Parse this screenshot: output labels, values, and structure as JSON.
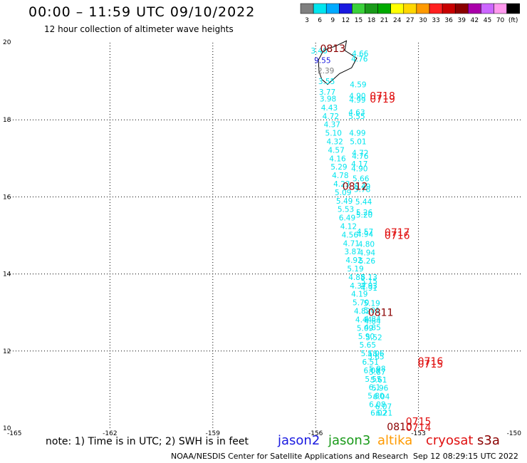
{
  "header": {
    "title": "00:00 – 11:59 UTC 09/10/2022",
    "subtitle": "12 hour collection of altimeter wave heights"
  },
  "footer": {
    "note": "note: 1) Time is in UTC; 2) SWH is in feet",
    "credit": "NOAA/NESDIS Center for Satellite Applications and Research",
    "timestamp": "Sep 12 08:29:15 UTC 2022",
    "satellites": [
      {
        "name": "jason2",
        "color": "#1a1ae0"
      },
      {
        "name": "jason3",
        "color": "#1a9a1a"
      },
      {
        "name": "altika",
        "color": "#ff9a00"
      },
      {
        "name": "cryosat",
        "color": "#e01010"
      },
      {
        "name": "s3a",
        "color": "#8a0000"
      }
    ]
  },
  "chart_data": {
    "type": "scatter",
    "title": "00:00 – 11:59 UTC 09/10/2022",
    "subtitle": "12 hour collection of altimeter wave heights",
    "xlim": [
      -165,
      -150
    ],
    "ylim": [
      10,
      20
    ],
    "xticks": [
      "-165",
      "-162",
      "-159",
      "-156",
      "-153",
      "-150"
    ],
    "yticks": [
      "10",
      "12",
      "14",
      "16",
      "18",
      "20"
    ],
    "grid": true,
    "colorbar": {
      "labels": [
        "3",
        "6",
        "9",
        "12",
        "15",
        "18",
        "21",
        "24",
        "27",
        "30",
        "33",
        "36",
        "39",
        "42",
        "45",
        "70",
        "(ft)"
      ],
      "colors": [
        "#7f7f7f",
        "#00e5ee",
        "#00aaff",
        "#1a1ae0",
        "#3ad13a",
        "#1a9a1a",
        "#00aa00",
        "#ffff00",
        "#ffd700",
        "#ff9a00",
        "#ff2020",
        "#c80000",
        "#8a0000",
        "#aa00aa",
        "#cc66ff",
        "#ff99ee",
        "#000000"
      ]
    },
    "series": [
      {
        "name": "altika",
        "color_by_value": true,
        "points": [
          {
            "lon": -155.9,
            "lat": 19.8,
            "v": "3.46",
            "c": "#00e5ee"
          },
          {
            "lon": -155.8,
            "lat": 19.55,
            "v": "9.55",
            "c": "#1a1ae0"
          },
          {
            "lon": -155.7,
            "lat": 19.28,
            "v": "2.39",
            "c": "#7f7f7f"
          },
          {
            "lon": -155.68,
            "lat": 19.0,
            "v": "3.55",
            "c": "#00e5ee"
          },
          {
            "lon": -155.66,
            "lat": 18.72,
            "v": "3.77",
            "c": "#00e5ee"
          },
          {
            "lon": -155.64,
            "lat": 18.55,
            "v": "3.98",
            "c": "#00e5ee"
          },
          {
            "lon": -155.6,
            "lat": 18.32,
            "v": "4.43",
            "c": "#00e5ee"
          },
          {
            "lon": -155.56,
            "lat": 18.1,
            "v": "4.72",
            "c": "#00e5ee"
          },
          {
            "lon": -155.52,
            "lat": 17.88,
            "v": "4.37",
            "c": "#00e5ee"
          },
          {
            "lon": -155.48,
            "lat": 17.66,
            "v": "5.10",
            "c": "#00e5ee"
          },
          {
            "lon": -155.44,
            "lat": 17.44,
            "v": "4.32",
            "c": "#00e5ee"
          },
          {
            "lon": -155.4,
            "lat": 17.22,
            "v": "4.57",
            "c": "#00e5ee"
          },
          {
            "lon": -155.36,
            "lat": 17.0,
            "v": "4.16",
            "c": "#00e5ee"
          },
          {
            "lon": -155.32,
            "lat": 16.78,
            "v": "5.29",
            "c": "#00e5ee"
          },
          {
            "lon": -155.28,
            "lat": 16.56,
            "v": "4.78",
            "c": "#00e5ee"
          },
          {
            "lon": -155.24,
            "lat": 16.34,
            "v": "4.23",
            "c": "#00e5ee"
          },
          {
            "lon": -155.2,
            "lat": 16.12,
            "v": "5.09",
            "c": "#00e5ee"
          },
          {
            "lon": -155.16,
            "lat": 15.9,
            "v": "5.49",
            "c": "#00e5ee"
          },
          {
            "lon": -155.12,
            "lat": 15.68,
            "v": "5.53",
            "c": "#00e5ee"
          },
          {
            "lon": -155.08,
            "lat": 15.46,
            "v": "6.49",
            "c": "#00e5ee"
          },
          {
            "lon": -155.04,
            "lat": 15.24,
            "v": "4.12",
            "c": "#00e5ee"
          },
          {
            "lon": -155.0,
            "lat": 15.02,
            "v": "4.56",
            "c": "#00e5ee"
          },
          {
            "lon": -154.96,
            "lat": 14.8,
            "v": "4.71",
            "c": "#00e5ee"
          },
          {
            "lon": -154.92,
            "lat": 14.58,
            "v": "3.87",
            "c": "#00e5ee"
          },
          {
            "lon": -154.88,
            "lat": 14.36,
            "v": "4.92",
            "c": "#00e5ee"
          },
          {
            "lon": -154.84,
            "lat": 14.14,
            "v": "5.19",
            "c": "#00e5ee"
          },
          {
            "lon": -154.8,
            "lat": 13.92,
            "v": "4.88",
            "c": "#00e5ee"
          },
          {
            "lon": -154.76,
            "lat": 13.7,
            "v": "4.37",
            "c": "#00e5ee"
          },
          {
            "lon": -154.72,
            "lat": 13.48,
            "v": "4.19",
            "c": "#00e5ee"
          },
          {
            "lon": -154.68,
            "lat": 13.26,
            "v": "5.70",
            "c": "#00e5ee"
          },
          {
            "lon": -154.64,
            "lat": 13.04,
            "v": "4.82",
            "c": "#00e5ee"
          },
          {
            "lon": -154.6,
            "lat": 12.82,
            "v": "4.44",
            "c": "#00e5ee"
          },
          {
            "lon": -154.56,
            "lat": 12.6,
            "v": "5.09",
            "c": "#00e5ee"
          },
          {
            "lon": -154.52,
            "lat": 12.38,
            "v": "5.90",
            "c": "#00e5ee"
          },
          {
            "lon": -154.48,
            "lat": 12.16,
            "v": "5.65",
            "c": "#00e5ee"
          },
          {
            "lon": -154.44,
            "lat": 11.94,
            "v": "5.18",
            "c": "#00e5ee"
          },
          {
            "lon": -154.4,
            "lat": 11.72,
            "v": "6.51",
            "c": "#00e5ee"
          },
          {
            "lon": -154.36,
            "lat": 11.5,
            "v": "6.08",
            "c": "#00e5ee"
          },
          {
            "lon": -154.32,
            "lat": 11.28,
            "v": "5.55",
            "c": "#00e5ee"
          },
          {
            "lon": -154.28,
            "lat": 11.06,
            "v": "6.1",
            "c": "#00e5ee"
          },
          {
            "lon": -154.24,
            "lat": 10.84,
            "v": "5.80",
            "c": "#00e5ee"
          },
          {
            "lon": -154.2,
            "lat": 10.62,
            "v": "6.08",
            "c": "#00e5ee"
          },
          {
            "lon": -154.16,
            "lat": 10.4,
            "v": "6.02",
            "c": "#00e5ee"
          }
        ]
      },
      {
        "name": "jason3",
        "color_by_value": true,
        "points": [
          {
            "lon": -154.7,
            "lat": 19.72,
            "v": "4.66",
            "c": "#00e5ee"
          },
          {
            "lon": -154.72,
            "lat": 19.58,
            "v": "4.76",
            "c": "#00e5ee"
          },
          {
            "lon": -154.76,
            "lat": 18.92,
            "v": "4.59",
            "c": "#00e5ee"
          },
          {
            "lon": -154.78,
            "lat": 18.62,
            "v": "4.90",
            "c": "#00e5ee"
          },
          {
            "lon": -154.78,
            "lat": 18.52,
            "v": "4.99",
            "c": "#00e5ee"
          },
          {
            "lon": -154.8,
            "lat": 18.2,
            "v": "4.63",
            "c": "#00e5ee"
          },
          {
            "lon": -154.8,
            "lat": 18.1,
            "v": "5.55",
            "c": "#00e5ee"
          },
          {
            "lon": -154.78,
            "lat": 17.66,
            "v": "4.99",
            "c": "#00e5ee"
          },
          {
            "lon": -154.76,
            "lat": 17.44,
            "v": "5.01",
            "c": "#00e5ee"
          },
          {
            "lon": -154.7,
            "lat": 17.14,
            "v": "4.72",
            "c": "#00e5ee"
          },
          {
            "lon": -154.7,
            "lat": 17.06,
            "v": "4.76",
            "c": "#00e5ee"
          },
          {
            "lon": -154.72,
            "lat": 16.86,
            "v": "4.17",
            "c": "#00e5ee"
          },
          {
            "lon": -154.72,
            "lat": 16.74,
            "v": "4.90",
            "c": "#00e5ee"
          },
          {
            "lon": -154.68,
            "lat": 16.48,
            "v": "5.66",
            "c": "#00e5ee"
          },
          {
            "lon": -154.64,
            "lat": 16.28,
            "v": "5.49",
            "c": "#00e5ee"
          },
          {
            "lon": -154.64,
            "lat": 16.2,
            "v": "5.78",
            "c": "#00e5ee"
          },
          {
            "lon": -154.6,
            "lat": 15.88,
            "v": "5.44",
            "c": "#00e5ee"
          },
          {
            "lon": -154.58,
            "lat": 15.6,
            "v": "5.26",
            "c": "#00e5ee"
          },
          {
            "lon": -154.58,
            "lat": 15.54,
            "v": "5.20",
            "c": "#00e5ee"
          },
          {
            "lon": -154.56,
            "lat": 15.1,
            "v": "4.57",
            "c": "#00e5ee"
          },
          {
            "lon": -154.56,
            "lat": 15.04,
            "v": "4.94",
            "c": "#00e5ee"
          },
          {
            "lon": -154.52,
            "lat": 14.78,
            "v": "4.80",
            "c": "#00e5ee"
          },
          {
            "lon": -154.5,
            "lat": 14.56,
            "v": "4.94",
            "c": "#00e5ee"
          },
          {
            "lon": -154.5,
            "lat": 14.34,
            "v": "5.26",
            "c": "#00e5ee"
          },
          {
            "lon": -154.44,
            "lat": 13.92,
            "v": "5.13",
            "c": "#00e5ee"
          },
          {
            "lon": -154.44,
            "lat": 13.82,
            "v": "5.15",
            "c": "#00e5ee"
          },
          {
            "lon": -154.44,
            "lat": 13.7,
            "v": "4.93",
            "c": "#00e5ee"
          },
          {
            "lon": -154.44,
            "lat": 13.64,
            "v": "4.91",
            "c": "#00e5ee"
          },
          {
            "lon": -154.36,
            "lat": 13.24,
            "v": "5.19",
            "c": "#00e5ee"
          },
          {
            "lon": -154.36,
            "lat": 13.06,
            "v": "5.01",
            "c": "#00e5ee"
          },
          {
            "lon": -154.34,
            "lat": 12.84,
            "v": "4.84",
            "c": "#00e5ee"
          },
          {
            "lon": -154.34,
            "lat": 12.78,
            "v": "4.84",
            "c": "#00e5ee"
          },
          {
            "lon": -154.34,
            "lat": 12.62,
            "v": "4.85",
            "c": "#00e5ee"
          },
          {
            "lon": -154.3,
            "lat": 12.36,
            "v": "5.52",
            "c": "#00e5ee"
          },
          {
            "lon": -154.24,
            "lat": 11.94,
            "v": "5.06",
            "c": "#00e5ee"
          },
          {
            "lon": -154.24,
            "lat": 11.86,
            "v": "5.65",
            "c": "#00e5ee"
          },
          {
            "lon": -154.2,
            "lat": 11.54,
            "v": "5.98",
            "c": "#00e5ee"
          },
          {
            "lon": -154.2,
            "lat": 11.46,
            "v": "5.87",
            "c": "#00e5ee"
          },
          {
            "lon": -154.16,
            "lat": 11.26,
            "v": "5.61",
            "c": "#00e5ee"
          },
          {
            "lon": -154.12,
            "lat": 11.04,
            "v": "5.96",
            "c": "#00e5ee"
          },
          {
            "lon": -154.08,
            "lat": 10.82,
            "v": "6.04",
            "c": "#00e5ee"
          },
          {
            "lon": -154.02,
            "lat": 10.56,
            "v": "6.07",
            "c": "#00e5ee"
          },
          {
            "lon": -154.0,
            "lat": 10.4,
            "v": "6.21",
            "c": "#00e5ee"
          }
        ]
      }
    ],
    "time_labels": [
      {
        "text": "0813",
        "lon": -155.5,
        "lat": 19.85,
        "color": "#8a0000"
      },
      {
        "text": "0718",
        "lon": -154.05,
        "lat": 18.62,
        "color": "#e01010"
      },
      {
        "text": "0719",
        "lon": -154.05,
        "lat": 18.54,
        "color": "#e01010"
      },
      {
        "text": "0812",
        "lon": -154.85,
        "lat": 16.28,
        "color": "#8a0000"
      },
      {
        "text": "0717",
        "lon": -153.62,
        "lat": 15.08,
        "color": "#e01010"
      },
      {
        "text": "0716",
        "lon": -153.62,
        "lat": 15.0,
        "color": "#e01010"
      },
      {
        "text": "0811",
        "lon": -154.1,
        "lat": 13.0,
        "color": "#8a0000"
      },
      {
        "text": "0716",
        "lon": -152.65,
        "lat": 11.74,
        "color": "#e01010"
      },
      {
        "text": "0715",
        "lon": -152.65,
        "lat": 11.66,
        "color": "#e01010"
      },
      {
        "text": "0715",
        "lon": -153.0,
        "lat": 10.18,
        "color": "#e01010"
      },
      {
        "text": "0810",
        "lon": -153.55,
        "lat": 10.04,
        "color": "#8a0000"
      },
      {
        "text": "0714",
        "lon": -153.0,
        "lat": 10.02,
        "color": "#e01010"
      }
    ],
    "coastline": [
      [
        -155.65,
        19.85
      ],
      [
        -155.45,
        19.9
      ],
      [
        -155.1,
        20.05
      ],
      [
        -155.15,
        19.8
      ],
      [
        -154.8,
        19.6
      ],
      [
        -154.95,
        19.35
      ],
      [
        -155.3,
        19.2
      ],
      [
        -155.65,
        18.92
      ],
      [
        -155.82,
        19.05
      ],
      [
        -155.9,
        19.25
      ],
      [
        -155.92,
        19.55
      ],
      [
        -155.8,
        19.75
      ],
      [
        -155.65,
        19.85
      ]
    ]
  }
}
